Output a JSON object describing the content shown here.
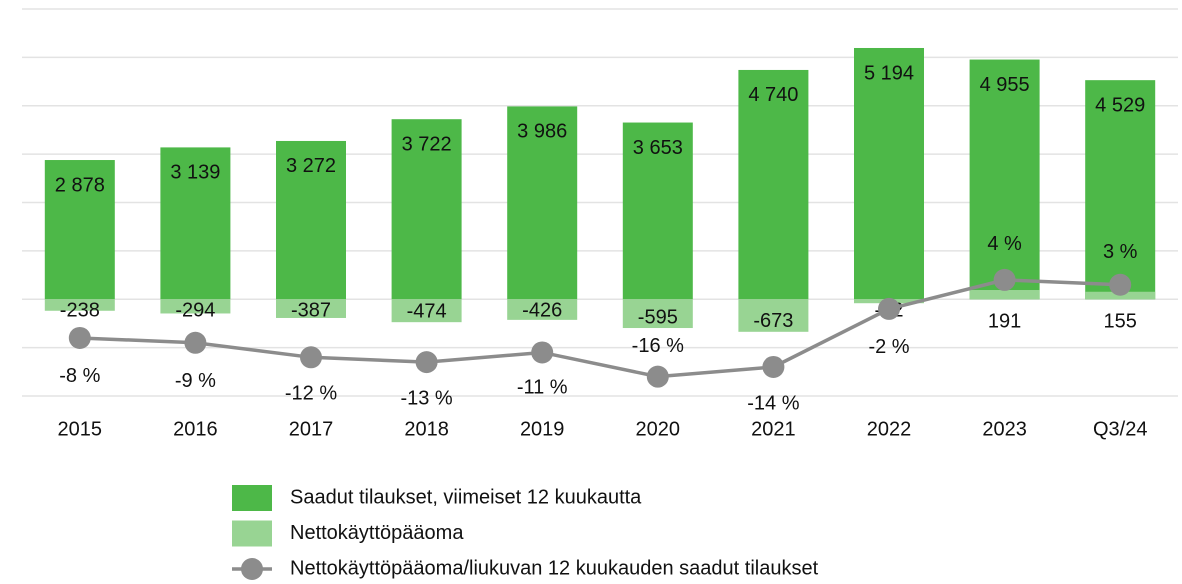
{
  "chart_data": {
    "type": "bar_line",
    "categories": [
      "2015",
      "2016",
      "2017",
      "2018",
      "2019",
      "2020",
      "2021",
      "2022",
      "2023",
      "Q3/24"
    ],
    "series": [
      {
        "name": "Saadut tilaukset, viimeiset 12 kuukautta",
        "type": "bar",
        "color": "#4db848",
        "values": [
          2878,
          3139,
          3272,
          3722,
          3986,
          3653,
          4740,
          5194,
          4955,
          4529
        ],
        "value_labels": [
          "2 878",
          "3 139",
          "3 272",
          "3 722",
          "3 986",
          "3 653",
          "4 740",
          "5 194",
          "4 955",
          "4 529"
        ]
      },
      {
        "name": "Nettokäyttöpääoma",
        "type": "bar",
        "color": "#98d493",
        "values": [
          -238,
          -294,
          -387,
          -474,
          -426,
          -595,
          -673,
          -82,
          191,
          155
        ]
      },
      {
        "name": "Nettokäyttöpääoma/liukuvan 12 kuukauden saadut tilaukset",
        "type": "line",
        "axis": "y2",
        "color": "#8c8c8c",
        "values": [
          -8,
          -9,
          -12,
          -13,
          -11,
          -16,
          -14,
          -2,
          4,
          3
        ],
        "value_labels": [
          "-8 %",
          "-9 %",
          "-12 %",
          "-13 %",
          "-11 %",
          "-16 %",
          "-14 %",
          "-2 %",
          "4 %",
          "3 %"
        ]
      }
    ],
    "ylim": [
      -2000,
      6000
    ],
    "yticks": [
      -2000,
      -1000,
      0,
      1000,
      2000,
      3000,
      4000,
      5000,
      6000
    ],
    "y2lim": [
      -20,
      60
    ],
    "grid": true
  }
}
